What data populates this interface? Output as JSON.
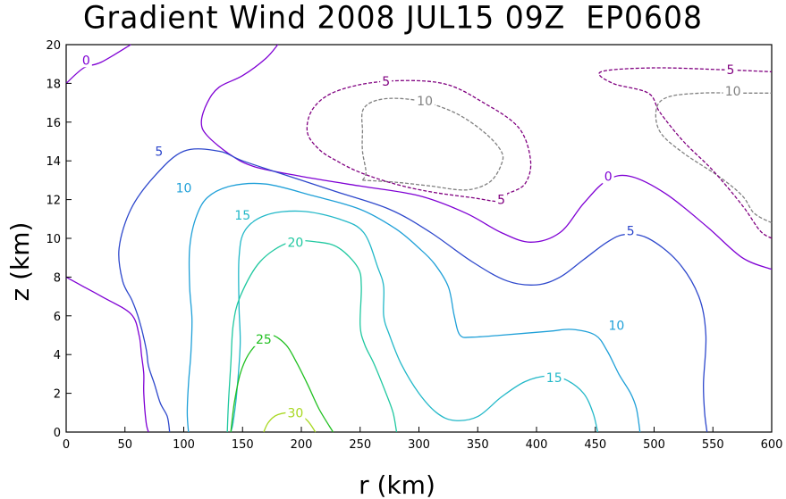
{
  "chart_data": {
    "type": "contour",
    "title": "Gradient Wind 2008 JUL15 09Z  EP0608",
    "xlabel": "r (km)",
    "ylabel": "z (km)",
    "xlim": [
      0,
      600
    ],
    "ylim": [
      0,
      20
    ],
    "xticks": [
      0,
      50,
      100,
      150,
      200,
      250,
      300,
      350,
      400,
      450,
      500,
      550,
      600
    ],
    "yticks": [
      0,
      2,
      4,
      6,
      8,
      10,
      12,
      14,
      16,
      18,
      20
    ],
    "grid": false,
    "levels": [
      {
        "value": -10,
        "label": "10",
        "color": "#808080",
        "dashed": true,
        "paths": [
          [
            [
              252,
              13.0
            ],
            [
              255,
              13.4
            ],
            [
              252,
              14.5
            ],
            [
              252,
              15.5
            ],
            [
              253,
              16.7
            ],
            [
              270,
              17.2
            ],
            [
              300,
              17.1
            ],
            [
              330,
              16.5
            ],
            [
              355,
              15.5
            ],
            [
              370,
              14.5
            ],
            [
              370,
              13.8
            ],
            [
              360,
              12.9
            ],
            [
              340,
              12.5
            ],
            [
              310,
              12.7
            ],
            [
              280,
              12.9
            ],
            [
              252,
              13.0
            ]
          ],
          [
            [
              600,
              10.8
            ],
            [
              585,
              11.3
            ],
            [
              575,
              12.2
            ],
            [
              555,
              13.2
            ],
            [
              525,
              14.4
            ],
            [
              505,
              15.5
            ],
            [
              502,
              16.7
            ],
            [
              512,
              17.3
            ],
            [
              540,
              17.5
            ],
            [
              570,
              17.5
            ],
            [
              600,
              17.5
            ]
          ]
        ],
        "labels": [
          [
            305,
            17.1
          ],
          [
            567,
            17.6
          ]
        ]
      },
      {
        "value": -5,
        "label": "5",
        "color": "#800080",
        "dashed": true,
        "paths": [
          [
            [
              375,
              12.3
            ],
            [
              370,
              11.9
            ],
            [
              345,
              12.1
            ],
            [
              310,
              12.4
            ],
            [
              280,
              12.8
            ],
            [
              250,
              13.4
            ],
            [
              230,
              14.0
            ],
            [
              215,
              14.6
            ],
            [
              205,
              15.5
            ],
            [
              210,
              16.7
            ],
            [
              230,
              17.6
            ],
            [
              270,
              18.1
            ],
            [
              320,
              18.0
            ],
            [
              355,
              17.0
            ],
            [
              385,
              15.7
            ],
            [
              395,
              14.0
            ],
            [
              390,
              12.8
            ],
            [
              375,
              12.3
            ]
          ],
          [
            [
              600,
              10.0
            ],
            [
              590,
              10.4
            ],
            [
              575,
              11.7
            ],
            [
              550,
              13.5
            ],
            [
              525,
              15.0
            ],
            [
              505,
              16.5
            ],
            [
              495,
              17.5
            ],
            [
              465,
              18.0
            ],
            [
              455,
              18.6
            ],
            [
              500,
              18.8
            ],
            [
              560,
              18.7
            ],
            [
              600,
              18.6
            ]
          ]
        ],
        "labels": [
          [
            272,
            18.1
          ],
          [
            370,
            12.0
          ],
          [
            565,
            18.7
          ]
        ]
      },
      {
        "value": 0,
        "label": "0",
        "color": "#7f00d4",
        "dashed": false,
        "paths": [
          [
            [
              0,
              18.0
            ],
            [
              15,
              18.8
            ],
            [
              30,
              19.1
            ],
            [
              55,
              20.0
            ]
          ],
          [
            [
              180,
              20.0
            ],
            [
              170,
              19.3
            ],
            [
              150,
              18.4
            ],
            [
              130,
              17.8
            ],
            [
              120,
              17.0
            ],
            [
              115,
              16.0
            ],
            [
              120,
              15.3
            ],
            [
              140,
              14.3
            ],
            [
              160,
              13.7
            ],
            [
              200,
              13.2
            ],
            [
              250,
              12.7
            ],
            [
              300,
              12.2
            ],
            [
              340,
              11.3
            ],
            [
              370,
              10.3
            ],
            [
              395,
              9.8
            ],
            [
              420,
              10.3
            ],
            [
              440,
              11.8
            ],
            [
              460,
              13.0
            ],
            [
              480,
              13.2
            ],
            [
              510,
              12.3
            ],
            [
              545,
              10.6
            ],
            [
              575,
              9.0
            ],
            [
              600,
              8.4
            ]
          ],
          [
            [
              0,
              8.0
            ],
            [
              15,
              7.5
            ],
            [
              30,
              7.0
            ],
            [
              55,
              6.1
            ],
            [
              62,
              5.0
            ],
            [
              64,
              4.0
            ],
            [
              66,
              3.0
            ],
            [
              66,
              2.0
            ],
            [
              68,
              0.5
            ],
            [
              70,
              0.0
            ]
          ]
        ],
        "labels": [
          [
            17,
            19.2
          ],
          [
            461,
            13.2
          ]
        ]
      },
      {
        "value": 5,
        "label": "5",
        "color": "#2e48cc",
        "dashed": false,
        "paths": [
          [
            [
              545,
              0.0
            ],
            [
              543,
              1.0
            ],
            [
              542,
              2.5
            ],
            [
              544,
              5.0
            ],
            [
              538,
              7.0
            ],
            [
              520,
              8.8
            ],
            [
              495,
              10.0
            ],
            [
              475,
              10.2
            ],
            [
              460,
              9.8
            ],
            [
              440,
              8.9
            ],
            [
              420,
              8.0
            ],
            [
              400,
              7.6
            ],
            [
              375,
              7.8
            ],
            [
              345,
              8.8
            ],
            [
              310,
              10.3
            ],
            [
              275,
              11.5
            ],
            [
              230,
              12.4
            ],
            [
              190,
              13.2
            ],
            [
              150,
              14.0
            ],
            [
              130,
              14.5
            ],
            [
              100,
              14.5
            ],
            [
              75,
              13.2
            ],
            [
              55,
              11.5
            ],
            [
              45,
              9.5
            ],
            [
              48,
              7.8
            ],
            [
              56,
              6.8
            ],
            [
              62,
              5.8
            ],
            [
              68,
              4.3
            ],
            [
              70,
              3.4
            ],
            [
              75,
              2.5
            ],
            [
              80,
              1.5
            ],
            [
              86,
              0.8
            ],
            [
              88,
              0.0
            ]
          ]
        ],
        "labels": [
          [
            79,
            14.5
          ],
          [
            480,
            10.4
          ]
        ]
      },
      {
        "value": 10,
        "label": "10",
        "color": "#1fa0d8",
        "dashed": false,
        "paths": [
          [
            [
              488,
              0.0
            ],
            [
              485,
              1.2
            ],
            [
              480,
              2.0
            ],
            [
              470,
              3.0
            ],
            [
              460,
              4.2
            ],
            [
              450,
              5.0
            ],
            [
              430,
              5.3
            ],
            [
              410,
              5.2
            ],
            [
              370,
              5.0
            ],
            [
              345,
              4.9
            ],
            [
              335,
              5.0
            ],
            [
              330,
              6.0
            ],
            [
              325,
              7.5
            ],
            [
              313,
              8.7
            ],
            [
              300,
              9.5
            ],
            [
              280,
              10.5
            ],
            [
              250,
              11.5
            ],
            [
              210,
              12.2
            ],
            [
              170,
              12.8
            ],
            [
              140,
              12.7
            ],
            [
              120,
              12.1
            ],
            [
              110,
              11.0
            ],
            [
              105,
              9.5
            ],
            [
              105,
              7.5
            ],
            [
              107,
              5.8
            ],
            [
              106,
              4.0
            ],
            [
              104,
              2.5
            ],
            [
              103,
              1.0
            ],
            [
              104,
              0.0
            ]
          ]
        ],
        "labels": [
          [
            100,
            12.6
          ],
          [
            468,
            5.5
          ]
        ]
      },
      {
        "value": 15,
        "label": "15",
        "color": "#22b8c8",
        "dashed": false,
        "paths": [
          [
            [
              452,
              0.0
            ],
            [
              448,
              1.0
            ],
            [
              440,
              2.0
            ],
            [
              425,
              2.7
            ],
            [
              410,
              2.9
            ],
            [
              390,
              2.6
            ],
            [
              370,
              1.8
            ],
            [
              350,
              0.8
            ],
            [
              330,
              0.6
            ],
            [
              315,
              1.0
            ],
            [
              300,
              2.0
            ],
            [
              285,
              3.5
            ],
            [
              275,
              5.0
            ],
            [
              270,
              6.0
            ],
            [
              270,
              7.5
            ],
            [
              265,
              8.5
            ],
            [
              253,
              10.3
            ],
            [
              232,
              11.0
            ],
            [
              200,
              11.4
            ],
            [
              170,
              11.2
            ],
            [
              152,
              10.4
            ],
            [
              147,
              9.0
            ],
            [
              147,
              6.5
            ],
            [
              148,
              4.5
            ],
            [
              145,
              2.0
            ],
            [
              142,
              0.5
            ],
            [
              140,
              0.0
            ]
          ]
        ],
        "labels": [
          [
            150,
            11.2
          ],
          [
            415,
            2.8
          ]
        ]
      },
      {
        "value": 20,
        "label": "20",
        "color": "#20c8a0",
        "dashed": false,
        "paths": [
          [
            [
              281,
              0.0
            ],
            [
              278,
              1.0
            ],
            [
              272,
              2.0
            ],
            [
              262,
              3.5
            ],
            [
              254,
              4.5
            ],
            [
              250,
              5.5
            ],
            [
              251,
              7.5
            ],
            [
              248,
              8.5
            ],
            [
              232,
              9.5
            ],
            [
              215,
              9.8
            ],
            [
              190,
              9.8
            ],
            [
              165,
              8.8
            ],
            [
              148,
              7.0
            ],
            [
              142,
              5.5
            ],
            [
              140,
              3.5
            ],
            [
              138,
              1.5
            ],
            [
              137,
              0.0
            ]
          ]
        ],
        "labels": [
          [
            195,
            9.8
          ]
        ]
      },
      {
        "value": 25,
        "label": "25",
        "color": "#20c020",
        "dashed": false,
        "paths": [
          [
            [
              227,
              0.0
            ],
            [
              215,
              1.2
            ],
            [
              205,
              2.5
            ],
            [
              195,
              3.7
            ],
            [
              187,
              4.5
            ],
            [
              175,
              5.0
            ],
            [
              165,
              4.7
            ],
            [
              155,
              4.0
            ],
            [
              148,
              3.0
            ],
            [
              143,
              1.5
            ],
            [
              140,
              0.0
            ]
          ]
        ],
        "labels": [
          [
            168,
            4.8
          ]
        ]
      },
      {
        "value": 30,
        "label": "30",
        "color": "#a8d820",
        "dashed": false,
        "paths": [
          [
            [
              168,
              0.0
            ],
            [
              172,
              0.5
            ],
            [
              180,
              0.9
            ],
            [
              195,
              1.0
            ],
            [
              205,
              0.6
            ],
            [
              212,
              0.0
            ]
          ]
        ],
        "labels": [
          [
            195,
            1.0
          ]
        ]
      }
    ]
  }
}
